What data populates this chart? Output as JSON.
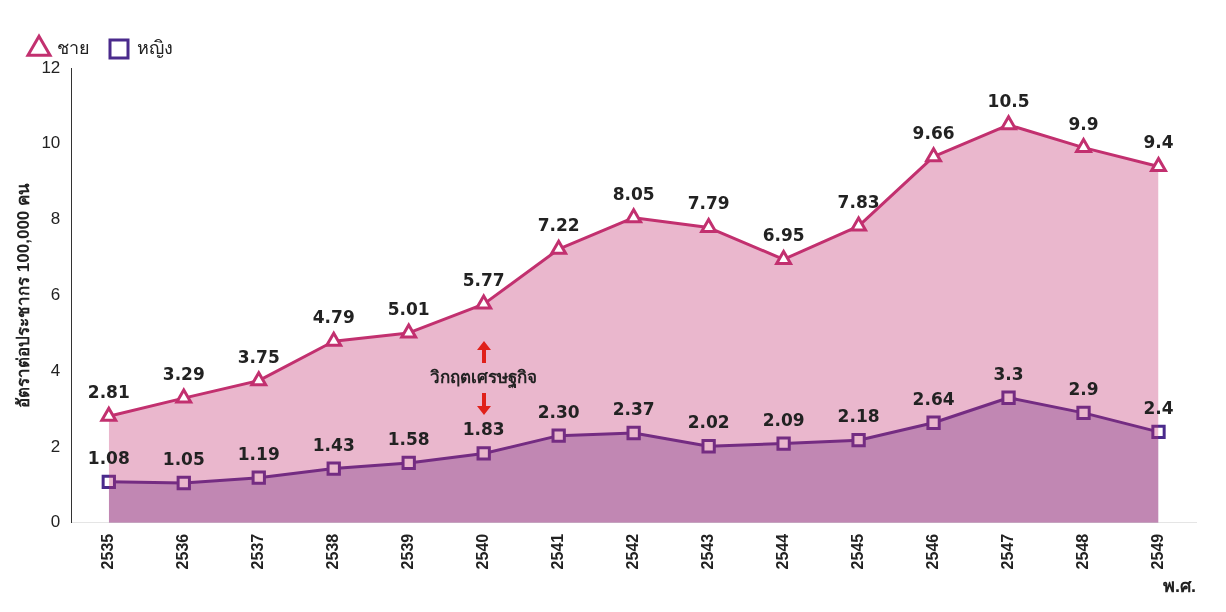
{
  "chart_data": {
    "type": "area",
    "xlabel": "พ.ศ.",
    "ylabel": "อัตราต่อประชากร 100,000 คน",
    "categories": [
      "2535",
      "2536",
      "2537",
      "2538",
      "2539",
      "2540",
      "2541",
      "2542",
      "2543",
      "2544",
      "2545",
      "2546",
      "2547",
      "2548",
      "2549"
    ],
    "series": [
      {
        "name": "ชาย",
        "color": "#c2306f",
        "marker": "triangle",
        "values": [
          2.81,
          3.29,
          3.75,
          4.79,
          5.01,
          5.77,
          7.22,
          8.05,
          7.79,
          6.95,
          7.83,
          9.66,
          10.5,
          9.9,
          9.4
        ],
        "value_labels": [
          "2.81",
          "3.29",
          "3.75",
          "4.79",
          "5.01",
          "5.77",
          "7.22",
          "8.05",
          "7.79",
          "6.95",
          "7.83",
          "9.66",
          "10.5",
          "9.9",
          "9.4"
        ]
      },
      {
        "name": "หญิง",
        "color": "#4a2a8c",
        "marker": "square",
        "values": [
          1.08,
          1.05,
          1.19,
          1.43,
          1.58,
          1.83,
          2.3,
          2.37,
          2.02,
          2.09,
          2.18,
          2.64,
          3.3,
          2.9,
          2.4
        ],
        "value_labels": [
          "1.08",
          "1.05",
          "1.19",
          "1.43",
          "1.58",
          "1.83",
          "2.30",
          "2.37",
          "2.02",
          "2.09",
          "2.18",
          "2.64",
          "3.3",
          "2.9",
          "2.4"
        ]
      }
    ],
    "ylim": [
      0,
      12
    ],
    "yticks": [
      0,
      2,
      4,
      6,
      8,
      10,
      12
    ],
    "grid": false,
    "legend": "top left",
    "line_style": "solid",
    "annotations": [
      "วิกฤตเศรษฐกิจ"
    ]
  }
}
